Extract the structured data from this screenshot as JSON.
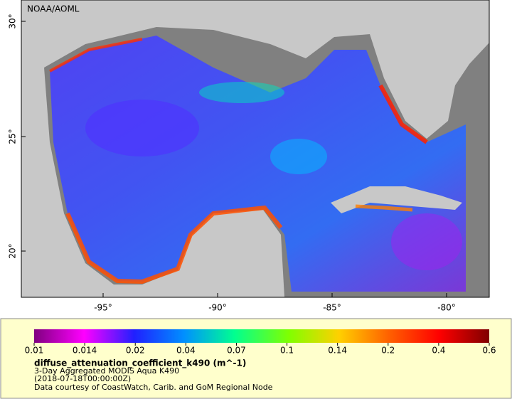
{
  "map": {
    "label": "NOAA/AOML",
    "lat_ticks": [
      "30°",
      "25°",
      "20°"
    ],
    "lon_ticks": [
      "-95°",
      "-90°",
      "-85°",
      "-80°"
    ]
  },
  "colorbar": {
    "ticks": [
      "0.01",
      "0.014",
      "0.02",
      "0.04",
      "0.07",
      "0.1",
      "0.14",
      "0.2",
      "0.4",
      "0.6"
    ]
  },
  "legend": {
    "title": "diffuse_attenuation_coefficient_k490 (m^-1)",
    "lines": [
      "3-Day Aggregated MODIS Aqua K490",
      "(2018-07-18T00:00:00Z)",
      "Data courtesy of CoastWatch, Carib. and GoM Regional Node"
    ]
  }
}
